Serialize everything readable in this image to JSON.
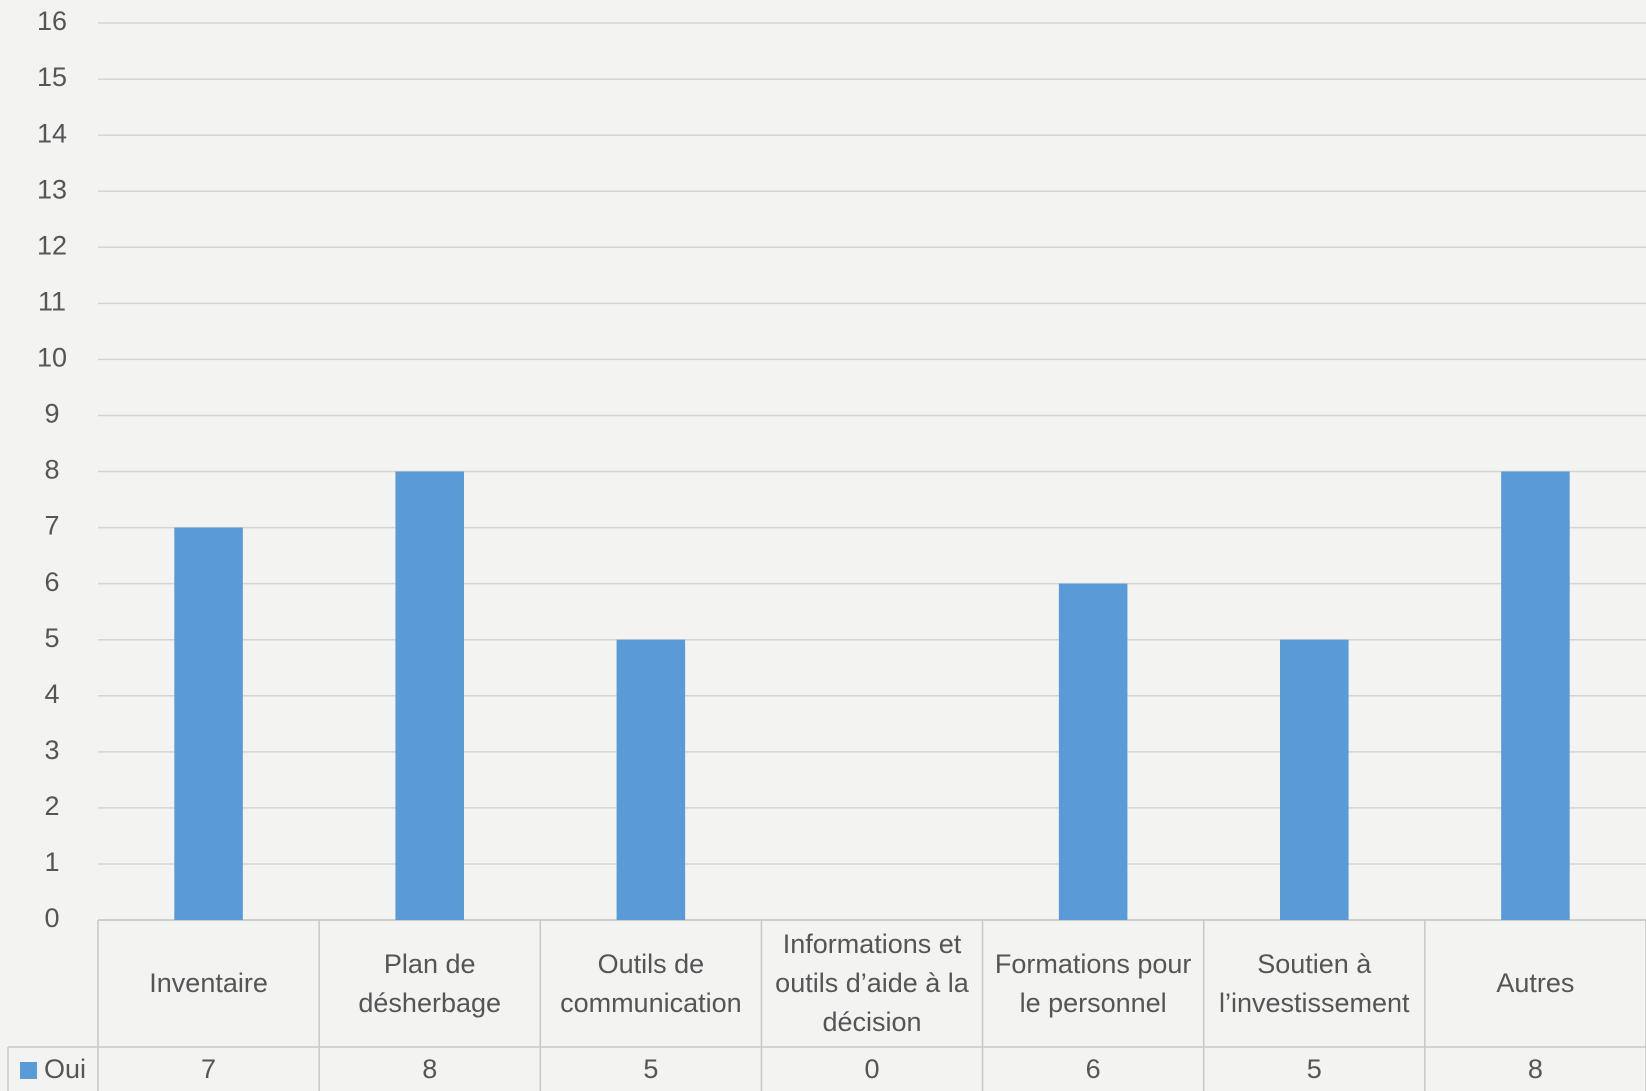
{
  "chart_data": {
    "type": "bar",
    "categories": [
      "Inventaire",
      "Plan de désherbage",
      "Outils de communication",
      "Informations et outils d’aide à la décision",
      "Formations pour le personnel",
      "Soutien à l’investissement",
      "Autres"
    ],
    "series": [
      {
        "name": "Oui",
        "color": "#5b9bd5",
        "values": [
          7,
          8,
          5,
          0,
          6,
          5,
          8
        ]
      }
    ],
    "ylim": [
      0,
      16
    ],
    "yticks": [
      0,
      1,
      2,
      3,
      4,
      5,
      6,
      7,
      8,
      9,
      10,
      11,
      12,
      13,
      14,
      15,
      16
    ],
    "grid": true
  }
}
